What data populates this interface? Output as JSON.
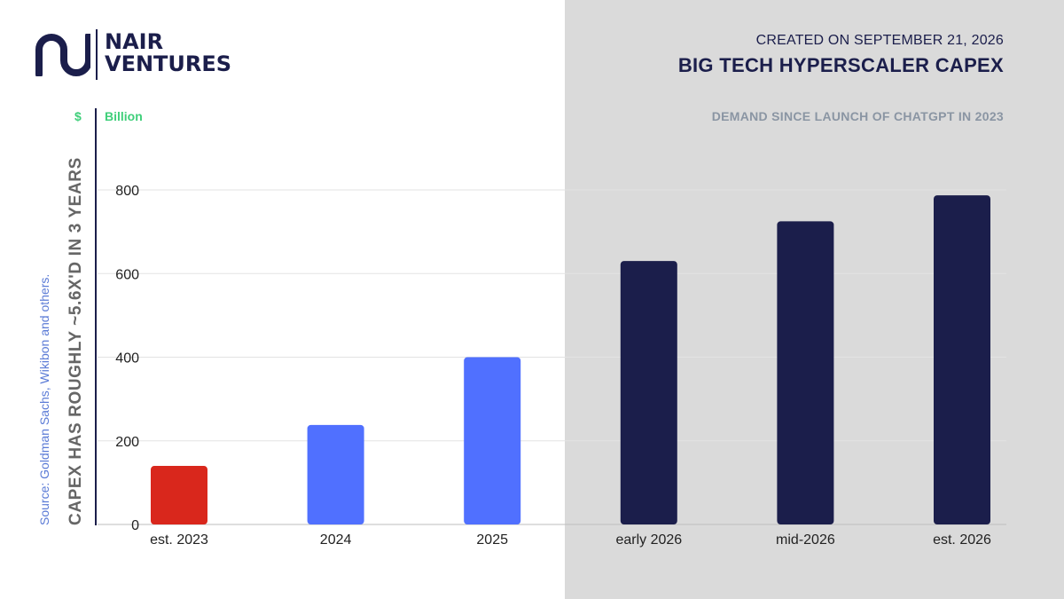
{
  "brand": {
    "line1": "NAIR",
    "line2": "VENTURES"
  },
  "header": {
    "created": "CREATED ON SEPTEMBER 21, 2026",
    "title": "BIG TECH HYPERSCALER CAPEX",
    "subtitle": "DEMAND SINCE LAUNCH OF CHATGPT IN 2023"
  },
  "side": {
    "unit_symbol": "$",
    "unit_word": "Billion",
    "source": "Source: Goldman Sachs, Wikibon and others.",
    "headline": "CAPEX HAS ROUGHLY ~5.6X'D IN 3 YEARS"
  },
  "colors": {
    "navy": "#1b1e4b",
    "blue": "#5070ff",
    "red": "#d9271c",
    "green": "#3fcf7a",
    "shade": "#dadada"
  },
  "chart_data": {
    "type": "bar",
    "title": "BIG TECH HYPERSCALER CAPEX",
    "subtitle": "DEMAND SINCE LAUNCH OF CHATGPT IN 2023",
    "ylabel": "$ Billion",
    "xlabel": "",
    "categories": [
      "est. 2023",
      "2024",
      "2025",
      "early 2026",
      "mid-2026",
      "est. 2026"
    ],
    "values": [
      140,
      238,
      400,
      630,
      725,
      787
    ],
    "bar_colors": [
      "#d9271c",
      "#5070ff",
      "#5070ff",
      "#1b1e4b",
      "#1b1e4b",
      "#1b1e4b"
    ],
    "ylim": [
      0,
      800
    ],
    "yticks": [
      0,
      200,
      400,
      600,
      800
    ],
    "grid": true,
    "legend": "none"
  }
}
